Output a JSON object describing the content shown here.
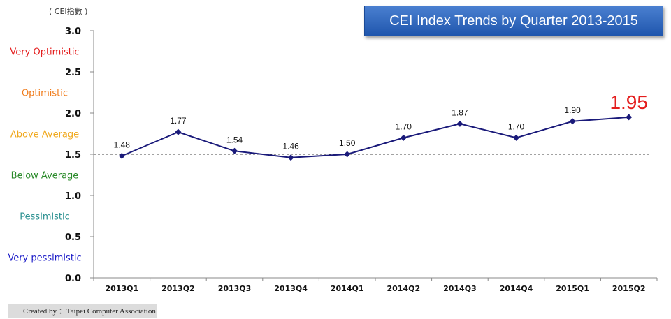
{
  "header": {
    "title": "CEI Index Trends by Quarter 2013-2015",
    "unit": "( CEI指數 )",
    "credit": "Created by ：Taipei Computer Association"
  },
  "zones": [
    {
      "label": "Very Optimistic",
      "color": "#e41e1e",
      "center": 2.75
    },
    {
      "label": "Optimistic",
      "color": "#f07c1c",
      "center": 2.25
    },
    {
      "label": "Above Average",
      "color": "#f0a81c",
      "center": 1.75
    },
    {
      "label": "Below Average",
      "color": "#2a8a2a",
      "center": 1.25
    },
    {
      "label": "Pessimistic",
      "color": "#2a9090",
      "center": 0.75
    },
    {
      "label": "Very pessimistic",
      "color": "#1c1cc8",
      "center": 0.25
    }
  ],
  "chart_data": {
    "type": "line",
    "categories": [
      "2013Q1",
      "2013Q2",
      "2013Q3",
      "2013Q4",
      "2014Q1",
      "2014Q2",
      "2014Q3",
      "2014Q4",
      "2015Q1",
      "2015Q2"
    ],
    "series": [
      {
        "values": [
          1.48,
          1.77,
          1.54,
          1.46,
          1.5,
          1.7,
          1.87,
          1.7,
          1.9,
          1.95
        ],
        "color": "#1a1a7a"
      }
    ],
    "data_labels": [
      "1.48",
      "1.77",
      "1.54",
      "1.46",
      "1.50",
      "1.70",
      "1.87",
      "1.70",
      "1.90",
      "1.95"
    ],
    "highlight_color": "#e41e1e",
    "title": "CEI Index Trends by Quarter 2013-2015",
    "ylim": [
      0,
      3
    ],
    "yticks": [
      "0.0",
      "0.5",
      "1.0",
      "1.5",
      "2.0",
      "2.5",
      "3.0"
    ],
    "reference_line": 1.5,
    "grid": false
  }
}
